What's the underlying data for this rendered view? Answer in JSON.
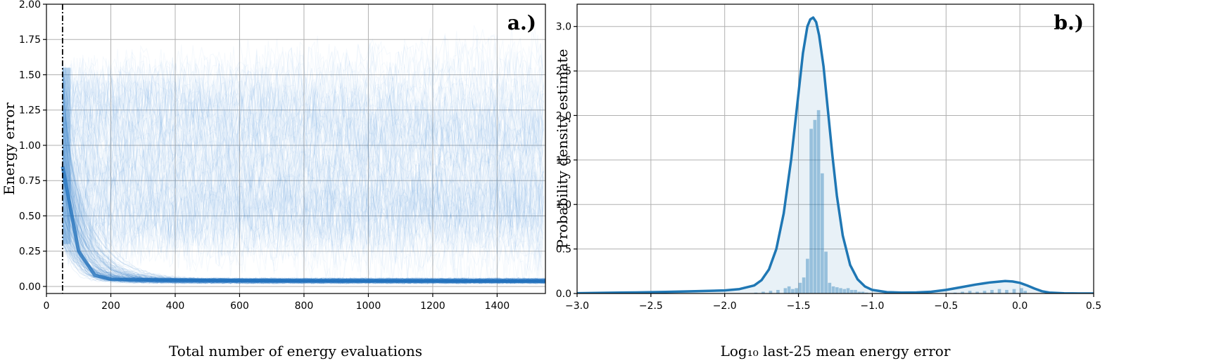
{
  "chart_data": [
    {
      "type": "line",
      "panel_tag": "a.)",
      "xlabel": "Total number of energy evaluations",
      "ylabel": "Energy error",
      "xlim": [
        0,
        1550
      ],
      "ylim": [
        -0.05,
        2.0
      ],
      "xticks": [
        0,
        200,
        400,
        600,
        800,
        1000,
        1200,
        1400
      ],
      "xtick_labels": [
        "0",
        "200",
        "400",
        "600",
        "800",
        "1000",
        "1200",
        "1400"
      ],
      "yticks": [
        0.0,
        0.25,
        0.5,
        0.75,
        1.0,
        1.25,
        1.5,
        1.75,
        2.0
      ],
      "ytick_labels": [
        "0.00",
        "0.25",
        "0.50",
        "0.75",
        "1.00",
        "1.25",
        "1.50",
        "1.75",
        "2.00"
      ],
      "vline_x": 50,
      "grid": true,
      "color": "#1f77b4",
      "series_description_values": {
        "start_x": 50,
        "converged_band": [
          [
            50,
            0.85
          ],
          [
            100,
            0.25
          ],
          [
            150,
            0.08
          ],
          [
            200,
            0.05
          ],
          [
            400,
            0.045
          ],
          [
            800,
            0.04
          ],
          [
            1200,
            0.038
          ],
          [
            1550,
            0.036
          ]
        ],
        "scatter_band_center": [
          [
            50,
            0.85
          ],
          [
            100,
            0.95
          ],
          [
            200,
            0.9
          ],
          [
            600,
            0.8
          ],
          [
            1000,
            0.75
          ],
          [
            1550,
            0.7
          ]
        ]
      }
    },
    {
      "type": "area",
      "panel_tag": "b.)",
      "xlabel": "Log₁₀ last-25 mean energy error",
      "ylabel": "Probability density estimate",
      "xlim": [
        -3.0,
        0.5
      ],
      "ylim": [
        0,
        3.25
      ],
      "xticks": [
        -3.0,
        -2.5,
        -2.0,
        -1.5,
        -1.0,
        -0.5,
        0.0,
        0.5
      ],
      "xtick_labels": [
        "−3.0",
        "−2.5",
        "−2.0",
        "−1.5",
        "−1.0",
        "−0.5",
        "0.0",
        "0.5"
      ],
      "yticks": [
        0.0,
        0.5,
        1.0,
        1.5,
        2.0,
        2.5,
        3.0
      ],
      "ytick_labels": [
        "0.0",
        "0.5",
        "1.0",
        "1.5",
        "2.0",
        "2.5",
        "3.0"
      ],
      "grid": true,
      "color": "#1f77b4",
      "kde": {
        "x": [
          -3.0,
          -2.8,
          -2.6,
          -2.4,
          -2.2,
          -2.0,
          -1.9,
          -1.8,
          -1.75,
          -1.7,
          -1.65,
          -1.6,
          -1.55,
          -1.5,
          -1.47,
          -1.44,
          -1.42,
          -1.4,
          -1.38,
          -1.36,
          -1.33,
          -1.3,
          -1.27,
          -1.24,
          -1.2,
          -1.15,
          -1.1,
          -1.05,
          -1.0,
          -0.9,
          -0.8,
          -0.7,
          -0.6,
          -0.5,
          -0.4,
          -0.3,
          -0.2,
          -0.1,
          -0.05,
          0.0,
          0.05,
          0.1,
          0.15,
          0.2,
          0.3,
          0.4,
          0.5
        ],
        "y": [
          0.003,
          0.008,
          0.012,
          0.018,
          0.025,
          0.035,
          0.05,
          0.09,
          0.15,
          0.27,
          0.5,
          0.9,
          1.5,
          2.25,
          2.7,
          3.0,
          3.08,
          3.1,
          3.05,
          2.9,
          2.55,
          2.05,
          1.55,
          1.1,
          0.65,
          0.32,
          0.16,
          0.08,
          0.04,
          0.015,
          0.01,
          0.012,
          0.02,
          0.04,
          0.07,
          0.1,
          0.125,
          0.14,
          0.135,
          0.12,
          0.09,
          0.055,
          0.025,
          0.01,
          0.002,
          0.0,
          0.0
        ]
      },
      "histogram": {
        "bin_width": 0.025,
        "bins": [
          [
            -1.8,
            0.01
          ],
          [
            -1.75,
            0.02
          ],
          [
            -1.7,
            0.03
          ],
          [
            -1.65,
            0.04
          ],
          [
            -1.6,
            0.06
          ],
          [
            -1.575,
            0.08
          ],
          [
            -1.55,
            0.05
          ],
          [
            -1.525,
            0.06
          ],
          [
            -1.5,
            0.12
          ],
          [
            -1.475,
            0.18
          ],
          [
            -1.45,
            0.39
          ],
          [
            -1.425,
            1.85
          ],
          [
            -1.4,
            1.95
          ],
          [
            -1.375,
            2.06
          ],
          [
            -1.35,
            1.35
          ],
          [
            -1.325,
            0.47
          ],
          [
            -1.3,
            0.12
          ],
          [
            -1.275,
            0.08
          ],
          [
            -1.25,
            0.07
          ],
          [
            -1.225,
            0.06
          ],
          [
            -1.2,
            0.05
          ],
          [
            -1.175,
            0.06
          ],
          [
            -1.15,
            0.04
          ],
          [
            -1.125,
            0.04
          ],
          [
            -1.1,
            0.02
          ],
          [
            -1.075,
            0.02
          ],
          [
            -1.05,
            0.01
          ],
          [
            -0.45,
            0.01
          ],
          [
            -0.4,
            0.02
          ],
          [
            -0.35,
            0.03
          ],
          [
            -0.3,
            0.02
          ],
          [
            -0.25,
            0.03
          ],
          [
            -0.2,
            0.04
          ],
          [
            -0.15,
            0.05
          ],
          [
            -0.1,
            0.04
          ],
          [
            -0.05,
            0.05
          ],
          [
            0.0,
            0.06
          ],
          [
            0.025,
            0.03
          ]
        ]
      }
    }
  ]
}
